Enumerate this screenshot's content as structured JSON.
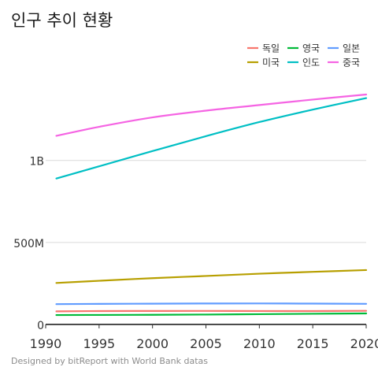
{
  "chart_data": {
    "type": "line",
    "title": "인구 추이 현황",
    "caption": "Designed by bitReport with World Bank datas",
    "xlabel": "",
    "ylabel": "",
    "xlim": [
      1990,
      2020
    ],
    "ylim": [
      0,
      1450000000
    ],
    "x_ticks": [
      1990,
      1995,
      2000,
      2005,
      2010,
      2015,
      2020
    ],
    "x_tick_labels": [
      "1990",
      "1995",
      "2000",
      "2005",
      "2010",
      "2015",
      "2020"
    ],
    "y_ticks": [
      0,
      500000000,
      1000000000
    ],
    "y_tick_labels": [
      "0",
      "500M",
      "1B"
    ],
    "grid": "horizontal",
    "legend_position": "top-right",
    "x": [
      1991,
      1995,
      2000,
      2005,
      2010,
      2015,
      2020
    ],
    "series": [
      {
        "name": "독일",
        "color": "#f8766d",
        "values": [
          80000000,
          81700000,
          82200000,
          82500000,
          81800000,
          81700000,
          83200000
        ]
      },
      {
        "name": "영국",
        "color": "#00ba38",
        "values": [
          57400000,
          58000000,
          58900000,
          60400000,
          62800000,
          65100000,
          67200000
        ]
      },
      {
        "name": "일본",
        "color": "#619cff",
        "values": [
          123900000,
          125400000,
          126800000,
          127800000,
          128100000,
          127100000,
          125800000
        ]
      },
      {
        "name": "미국",
        "color": "#b79f00",
        "values": [
          253000000,
          266300000,
          282200000,
          295500000,
          309300000,
          320700000,
          331500000
        ]
      },
      {
        "name": "인도",
        "color": "#00bfc4",
        "values": [
          890000000,
          964000000,
          1057000000,
          1148000000,
          1234000000,
          1310000000,
          1380000000
        ]
      },
      {
        "name": "중국",
        "color": "#f564e3",
        "values": [
          1150000000,
          1205000000,
          1262600000,
          1303700000,
          1337700000,
          1371200000,
          1402000000
        ]
      }
    ]
  }
}
